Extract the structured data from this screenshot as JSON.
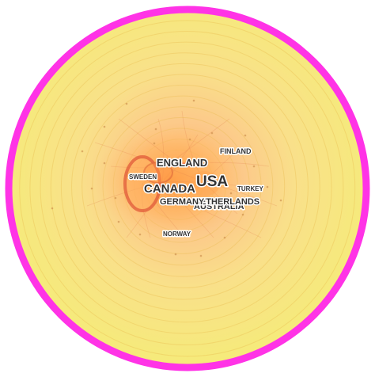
{
  "diagram": {
    "colors": {
      "outer_ring": "#ff33e6",
      "field_outer": "#f6ea7a",
      "field_inner": "#fbd79a",
      "core": "#ffb35e",
      "node_highlight": "#e05a3a",
      "label_text": "#333333"
    },
    "countries": [
      {
        "id": "usa",
        "label": "USA"
      },
      {
        "id": "england",
        "label": "ENGLAND"
      },
      {
        "id": "canada",
        "label": "CANADA"
      },
      {
        "id": "germany",
        "label": "GERMANY"
      },
      {
        "id": "netherlands",
        "label": "NETHERLANDS"
      },
      {
        "id": "australia",
        "label": "AUSTRALIA"
      },
      {
        "id": "sweden",
        "label": "SWEDEN"
      },
      {
        "id": "finland",
        "label": "FINLAND"
      },
      {
        "id": "turkey",
        "label": "TURKEY"
      },
      {
        "id": "norway",
        "label": "NORWAY"
      }
    ]
  }
}
